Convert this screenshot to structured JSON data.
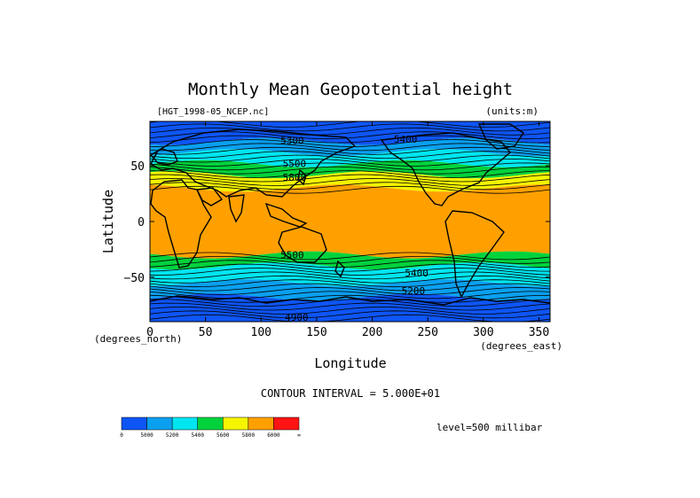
{
  "chart_data": {
    "type": "heatmap",
    "title": "Monthly Mean Geopotential height",
    "subtitle_left": "[HGT_1998-05_NCEP.nc]",
    "subtitle_right": "(units:m)",
    "xlabel": "Longitude",
    "ylabel": "Latitude",
    "x_unit_note": "(degrees_east)",
    "y_unit_note": "(degrees_north)",
    "xlim": [
      0,
      360
    ],
    "ylim": [
      -90,
      90
    ],
    "x_ticks": [
      0,
      50,
      100,
      150,
      200,
      250,
      300,
      350
    ],
    "y_ticks": [
      50,
      0,
      -50
    ],
    "y_tick_labels": [
      "50",
      "0",
      "−50"
    ],
    "contour_interval_text": "CONTOUR INTERVAL = 5.000E+01",
    "level_text": "level=500 millibar",
    "contour_labels": [
      {
        "text": "5300",
        "lon": 128,
        "lat": 73
      },
      {
        "text": "5400",
        "lon": 230,
        "lat": 74
      },
      {
        "text": "5500",
        "lon": 130,
        "lat": 52
      },
      {
        "text": "5800",
        "lon": 130,
        "lat": 40
      },
      {
        "text": "5500",
        "lon": 128,
        "lat": -30
      },
      {
        "text": "5400",
        "lon": 240,
        "lat": -46
      },
      {
        "text": "5200",
        "lon": 237,
        "lat": -62
      },
      {
        "text": "4900",
        "lon": 132,
        "lat": -86
      }
    ],
    "bands": [
      {
        "lat": 90,
        "color": "#0e55f5"
      },
      {
        "lat": 72,
        "color": "#0aa0f0"
      },
      {
        "lat": 62,
        "color": "#00e6f0"
      },
      {
        "lat": 52,
        "color": "#00d23c"
      },
      {
        "lat": 42,
        "color": "#f5f500"
      },
      {
        "lat": 30,
        "color": "#ffa000"
      },
      {
        "lat": -30,
        "color": "#00d23c"
      },
      {
        "lat": -40,
        "color": "#00e6f0"
      },
      {
        "lat": -55,
        "color": "#0aa0f0"
      },
      {
        "lat": -68,
        "color": "#0e55f5"
      }
    ],
    "colorbar": {
      "colors": [
        "#0e55f5",
        "#0aa0f0",
        "#00e6f0",
        "#00d23c",
        "#f5f500",
        "#ffa000",
        "#ff1414"
      ],
      "labels": [
        "0",
        "5000",
        "5200",
        "5400",
        "5600",
        "5800",
        "6000",
        "∞"
      ]
    }
  }
}
